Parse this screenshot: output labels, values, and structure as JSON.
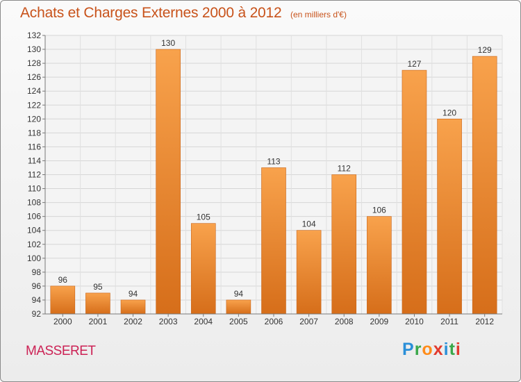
{
  "title": "Achats et Charges Externes 2000 à 2012",
  "subtitle": "(en milliers d'€)",
  "place": "MASSERET",
  "logo": {
    "text": "Proxiti",
    "letters": [
      "P",
      "r",
      "o",
      "x",
      "i",
      "t",
      "i"
    ],
    "colors": [
      "#2a8fd8",
      "#3aa84a",
      "#ff8c1a",
      "#e23a2e",
      "#2a8fd8",
      "#3aa84a",
      "#e23a2e"
    ]
  },
  "colors": {
    "bar_light": "#f8a24c",
    "bar_dark": "#d66e1a",
    "title": "#c8521a",
    "place": "#cc2255"
  },
  "chart_data": {
    "type": "bar",
    "categories": [
      "2000",
      "2001",
      "2002",
      "2003",
      "2004",
      "2005",
      "2006",
      "2007",
      "2008",
      "2009",
      "2010",
      "2011",
      "2012"
    ],
    "values": [
      96,
      95,
      94,
      130,
      105,
      94,
      113,
      104,
      112,
      106,
      127,
      120,
      129
    ],
    "ylim": [
      92,
      132
    ],
    "ytick_step": 2,
    "grid": true
  }
}
